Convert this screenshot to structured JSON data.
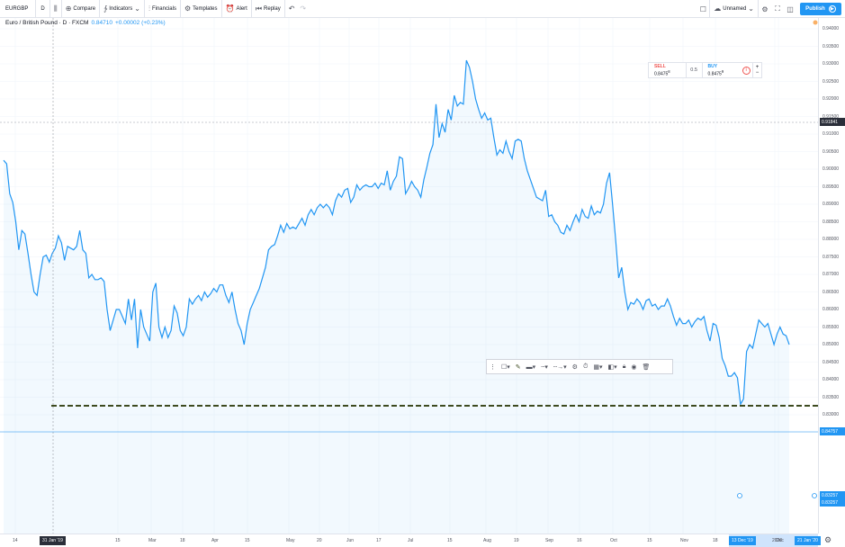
{
  "toolbar": {
    "symbol": "EURGBP",
    "interval": "D",
    "compare": "Compare",
    "indicators": "Indicators",
    "financials": "Financials",
    "templates": "Templates",
    "alert": "Alert",
    "replay": "Replay",
    "layout_name": "Unnamed",
    "publish": "Publish"
  },
  "legend": {
    "title": "Euro / British Pound · D · FXCM",
    "last": "0.84710",
    "change": "+0.00002 (+0.23%)"
  },
  "trade": {
    "sell_label": "SELL",
    "sell_price": "0.8475",
    "sell_sup": "8",
    "spread": "0.5",
    "buy_label": "BUY",
    "buy_price": "0.8475",
    "buy_sup": "9",
    "plus": "+",
    "minus": "−"
  },
  "price_axis": {
    "labels": [
      "0.94000",
      "0.93500",
      "0.93000",
      "0.92500",
      "0.92000",
      "0.91500",
      "0.91000",
      "0.90500",
      "0.90000",
      "0.89500",
      "0.89000",
      "0.88500",
      "0.88000",
      "0.87500",
      "0.87000",
      "0.86500",
      "0.86000",
      "0.85500",
      "0.85000",
      "0.84500",
      "0.84000",
      "0.83500",
      "0.83000",
      "0.82500"
    ],
    "crosshair_tag": "0.91841",
    "last_tag": "0.84757",
    "line_tag_1": "0.83257",
    "line_tag_2": "0.83257"
  },
  "time_axis": {
    "labels": [
      "14",
      "Feb",
      "15",
      "Mar",
      "18",
      "Apr",
      "15",
      "May",
      "20",
      "Jun",
      "17",
      "Jul",
      "15",
      "Aug",
      "19",
      "Sep",
      "16",
      "Oct",
      "15",
      "Nov",
      "18",
      "Dec",
      "2020"
    ],
    "crosshair_tag": "31 Jan '19",
    "range_start_tag": "13 Dec '19",
    "range_end_tag": "21 Jan '20"
  },
  "chart_data": {
    "type": "line",
    "symbol": "EURGBP",
    "ylim": [
      0.825,
      0.94
    ],
    "horizontal_line": 0.83257,
    "series": [
      {
        "values": [
          0.9025,
          0.9015,
          0.893,
          0.8905,
          0.885,
          0.877,
          0.8825,
          0.8815,
          0.876,
          0.87,
          0.865,
          0.864,
          0.87,
          0.875,
          0.8755,
          0.8735,
          0.876,
          0.8775,
          0.881,
          0.879,
          0.874,
          0.878,
          0.8775,
          0.877,
          0.878,
          0.8825,
          0.877,
          0.876,
          0.869,
          0.87,
          0.8685,
          0.8685,
          0.869,
          0.868,
          0.86,
          0.854,
          0.857,
          0.86,
          0.86,
          0.858,
          0.856,
          0.863,
          0.857,
          0.863,
          0.849,
          0.86,
          0.855,
          0.853,
          0.851,
          0.865,
          0.8675,
          0.855,
          0.852,
          0.855,
          0.852,
          0.854,
          0.861,
          0.859,
          0.854,
          0.8525,
          0.855,
          0.863,
          0.8615,
          0.863,
          0.864,
          0.8625,
          0.865,
          0.8635,
          0.8645,
          0.866,
          0.865,
          0.867,
          0.867,
          0.864,
          0.862,
          0.865,
          0.86,
          0.856,
          0.854,
          0.85,
          0.856,
          0.86,
          0.862,
          0.864,
          0.866,
          0.869,
          0.872,
          0.877,
          0.878,
          0.8785,
          0.881,
          0.884,
          0.882,
          0.8845,
          0.883,
          0.8835,
          0.883,
          0.8845,
          0.886,
          0.884,
          0.887,
          0.8885,
          0.887,
          0.889,
          0.89,
          0.889,
          0.89,
          0.889,
          0.887,
          0.891,
          0.893,
          0.892,
          0.894,
          0.8945,
          0.8905,
          0.892,
          0.8955,
          0.894,
          0.895,
          0.8955,
          0.895,
          0.895,
          0.896,
          0.8945,
          0.896,
          0.8955,
          0.8995,
          0.894,
          0.8965,
          0.898,
          0.9035,
          0.903,
          0.893,
          0.8945,
          0.8965,
          0.895,
          0.894,
          0.892,
          0.897,
          0.9005,
          0.9045,
          0.907,
          0.9185,
          0.909,
          0.913,
          0.9105,
          0.917,
          0.914,
          0.921,
          0.918,
          0.919,
          0.9185,
          0.931,
          0.929,
          0.925,
          0.92,
          0.917,
          0.9145,
          0.916,
          0.914,
          0.9145,
          0.909,
          0.904,
          0.9055,
          0.9045,
          0.908,
          0.905,
          0.903,
          0.908,
          0.9085,
          0.908,
          0.903,
          0.8995,
          0.897,
          0.8945,
          0.892,
          0.8915,
          0.891,
          0.894,
          0.8865,
          0.887,
          0.885,
          0.884,
          0.882,
          0.8815,
          0.884,
          0.8825,
          0.885,
          0.887,
          0.885,
          0.8885,
          0.8865,
          0.886,
          0.8895,
          0.887,
          0.888,
          0.8875,
          0.89,
          0.896,
          0.899,
          0.89,
          0.88,
          0.869,
          0.872,
          0.865,
          0.86,
          0.862,
          0.8615,
          0.863,
          0.862,
          0.86,
          0.8625,
          0.863,
          0.861,
          0.8615,
          0.86,
          0.861,
          0.861,
          0.863,
          0.861,
          0.858,
          0.8555,
          0.8575,
          0.856,
          0.856,
          0.857,
          0.855,
          0.8565,
          0.8575,
          0.857,
          0.858,
          0.854,
          0.851,
          0.856,
          0.8555,
          0.852,
          0.846,
          0.844,
          0.841,
          0.841,
          0.842,
          0.8405,
          0.833,
          0.8345,
          0.848,
          0.85,
          0.849,
          0.853,
          0.857,
          0.856,
          0.855,
          0.856,
          0.853,
          0.85,
          0.853,
          0.855,
          0.853,
          0.8525,
          0.85
        ]
      }
    ]
  }
}
